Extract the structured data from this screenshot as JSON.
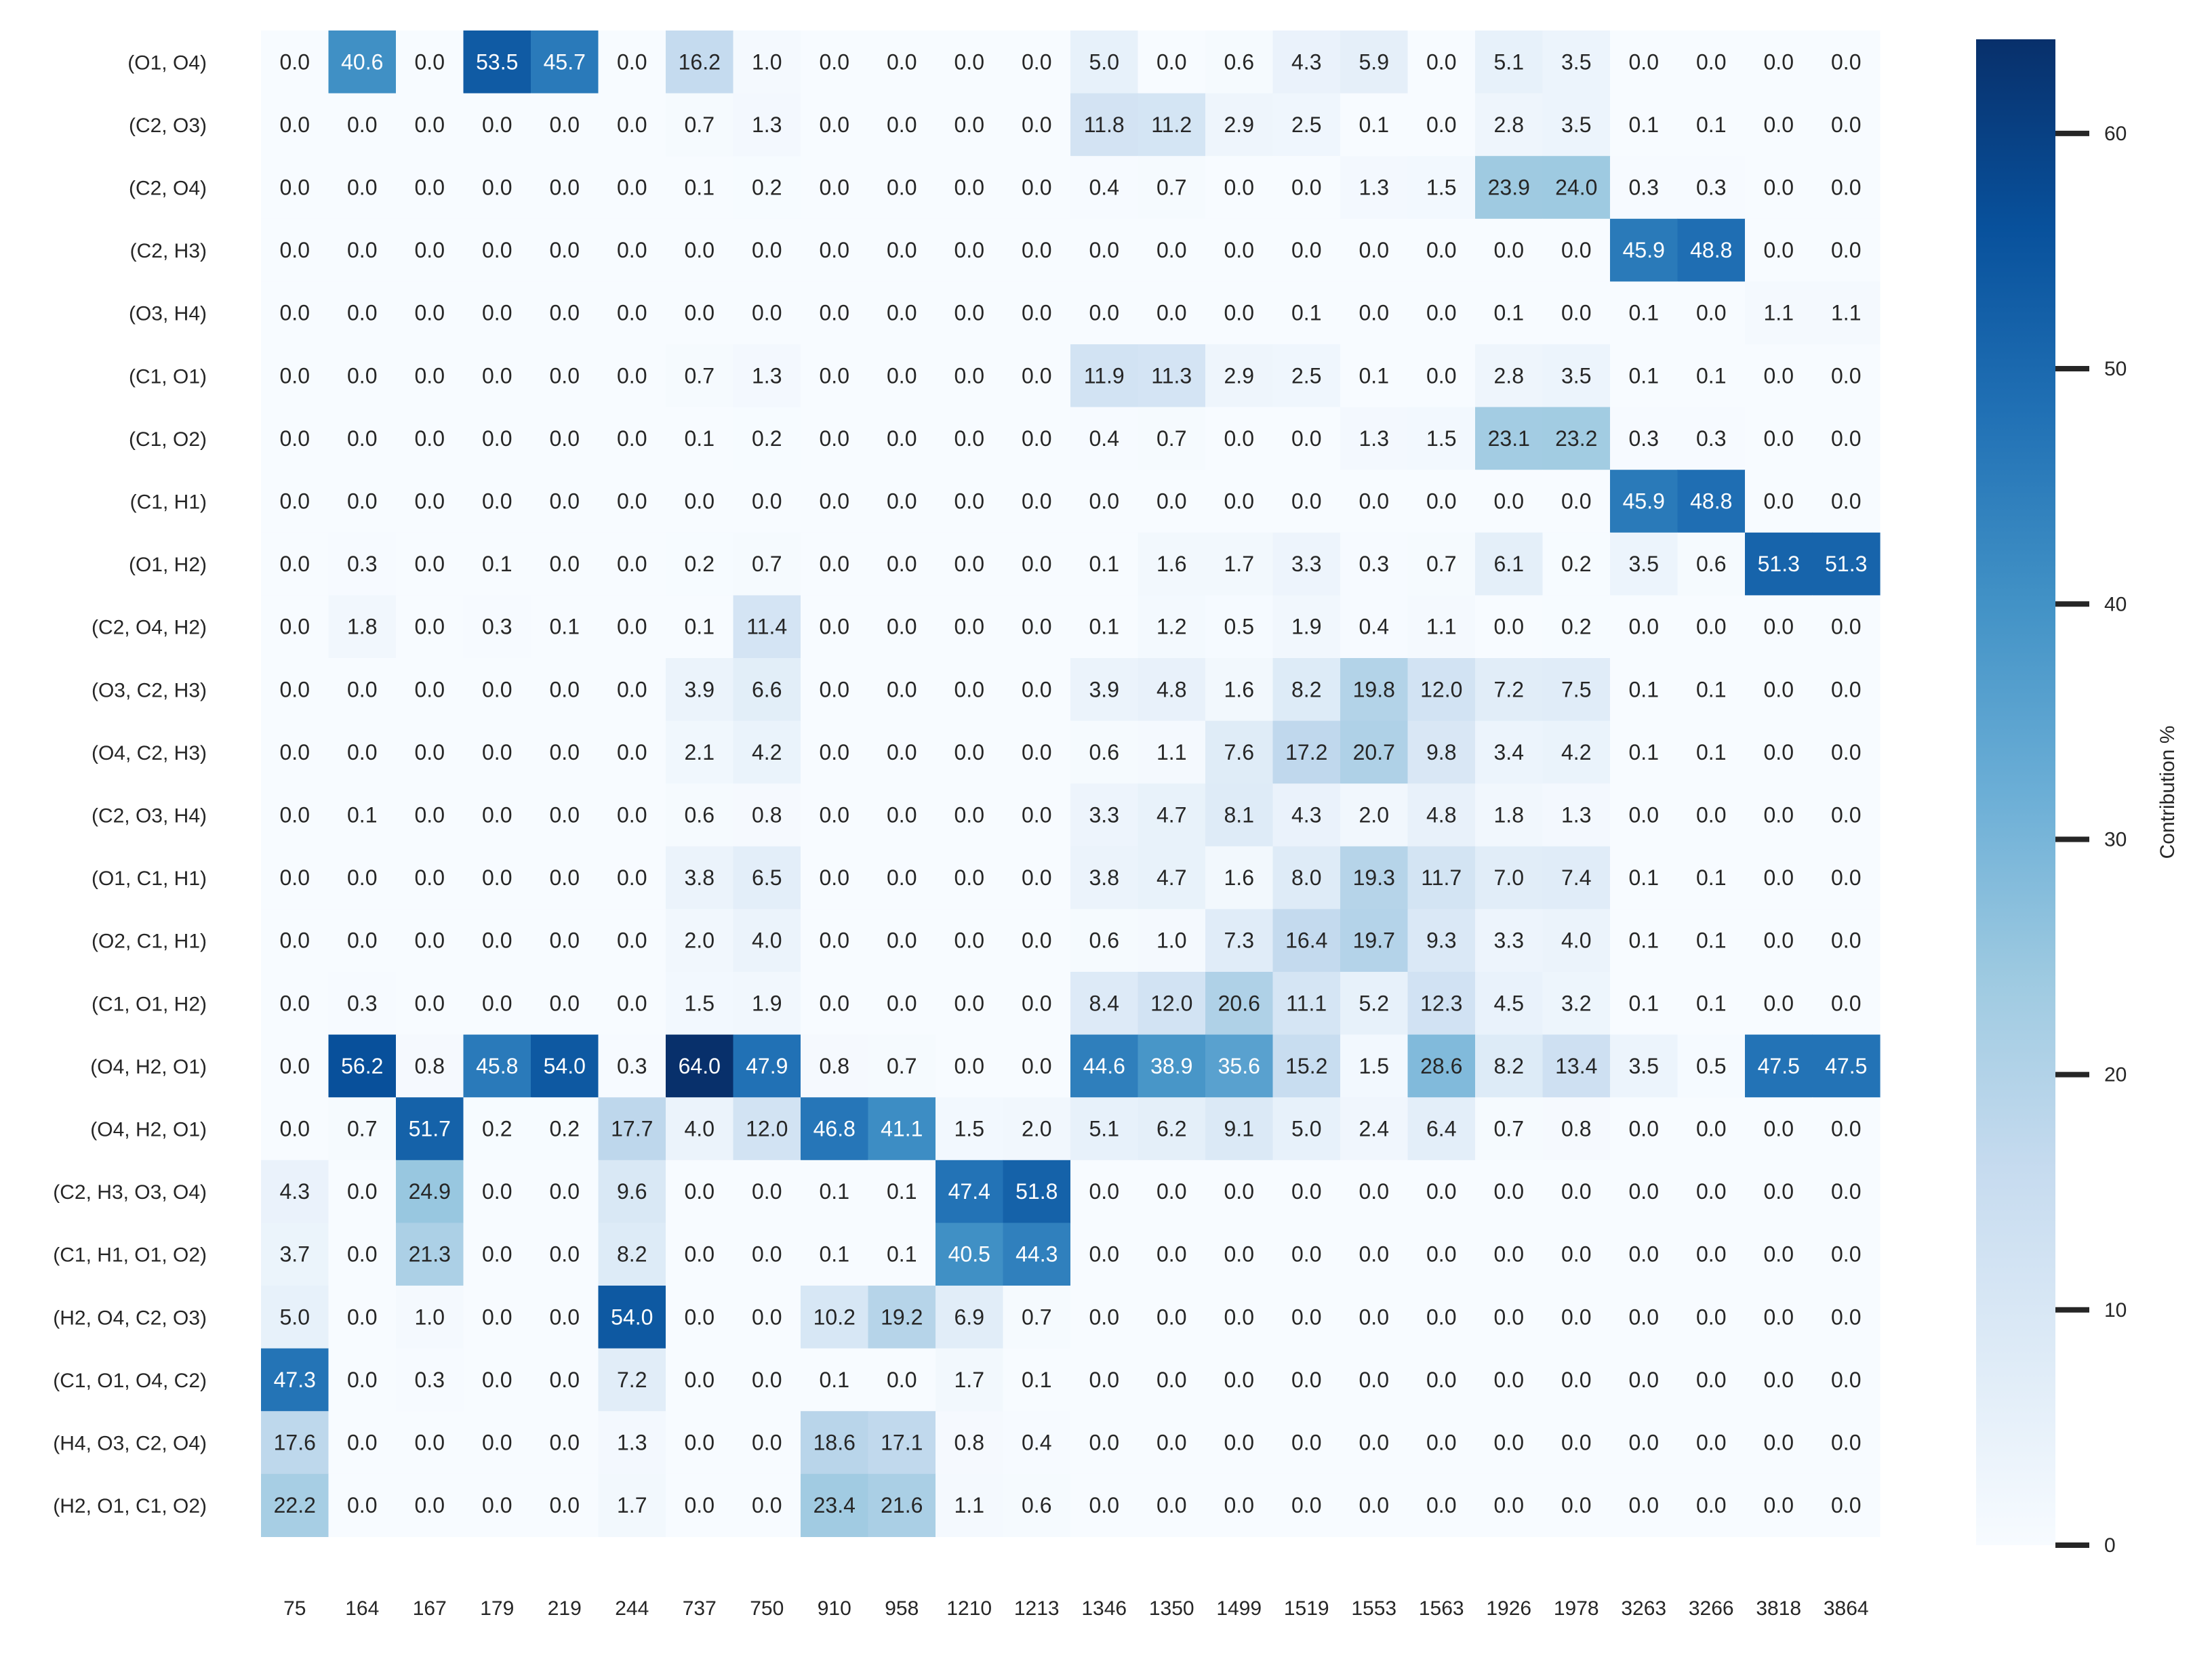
{
  "chart_data": {
    "type": "heatmap",
    "title": "",
    "xlabel": "",
    "ylabel": "",
    "x": [
      "75",
      "164",
      "167",
      "179",
      "219",
      "244",
      "737",
      "750",
      "910",
      "958",
      "1210",
      "1213",
      "1346",
      "1350",
      "1499",
      "1519",
      "1553",
      "1563",
      "1926",
      "1978",
      "3263",
      "3266",
      "3818",
      "3864"
    ],
    "y": [
      "(O1, O4)",
      "(C2, O3)",
      "(C2, O4)",
      "(C2, H3)",
      "(O3, H4)",
      "(C1, O1)",
      "(C1, O2)",
      "(C1, H1)",
      "(O1, H2)",
      "(C2, O4, H2)",
      "(O3, C2, H3)",
      "(O4, C2, H3)",
      "(C2, O3, H4)",
      "(O1, C1, H1)",
      "(O2, C1, H1)",
      "(C1, O1, H2)",
      "(O4, H2, O1)",
      "(O4, H2, O1)",
      "(C2, H3, O3, O4)",
      "(C1, H1, O1, O2)",
      "(H2, O4, C2, O3)",
      "(C1, O1, O4, C2)",
      "(H4, O3, C2, O4)",
      "(H2, O1, C1, O2)"
    ],
    "values": [
      [
        0.0,
        40.6,
        0.0,
        53.5,
        45.7,
        0.0,
        16.2,
        1.0,
        0.0,
        0.0,
        0.0,
        0.0,
        5.0,
        0.0,
        0.6,
        4.3,
        5.9,
        0.0,
        5.1,
        3.5,
        0.0,
        0.0,
        0.0,
        0.0
      ],
      [
        0.0,
        0.0,
        0.0,
        0.0,
        0.0,
        0.0,
        0.7,
        1.3,
        0.0,
        0.0,
        0.0,
        0.0,
        11.8,
        11.2,
        2.9,
        2.5,
        0.1,
        0.0,
        2.8,
        3.5,
        0.1,
        0.1,
        0.0,
        0.0
      ],
      [
        0.0,
        0.0,
        0.0,
        0.0,
        0.0,
        0.0,
        0.1,
        0.2,
        0.0,
        0.0,
        0.0,
        0.0,
        0.4,
        0.7,
        0.0,
        0.0,
        1.3,
        1.5,
        23.9,
        24.0,
        0.3,
        0.3,
        0.0,
        0.0
      ],
      [
        0.0,
        0.0,
        0.0,
        0.0,
        0.0,
        0.0,
        0.0,
        0.0,
        0.0,
        0.0,
        0.0,
        0.0,
        0.0,
        0.0,
        0.0,
        0.0,
        0.0,
        0.0,
        0.0,
        0.0,
        45.9,
        48.8,
        0.0,
        0.0
      ],
      [
        0.0,
        0.0,
        0.0,
        0.0,
        0.0,
        0.0,
        0.0,
        0.0,
        0.0,
        0.0,
        0.0,
        0.0,
        0.0,
        0.0,
        0.0,
        0.1,
        0.0,
        0.0,
        0.1,
        0.0,
        0.1,
        0.0,
        1.1,
        1.1
      ],
      [
        0.0,
        0.0,
        0.0,
        0.0,
        0.0,
        0.0,
        0.7,
        1.3,
        0.0,
        0.0,
        0.0,
        0.0,
        11.9,
        11.3,
        2.9,
        2.5,
        0.1,
        0.0,
        2.8,
        3.5,
        0.1,
        0.1,
        0.0,
        0.0
      ],
      [
        0.0,
        0.0,
        0.0,
        0.0,
        0.0,
        0.0,
        0.1,
        0.2,
        0.0,
        0.0,
        0.0,
        0.0,
        0.4,
        0.7,
        0.0,
        0.0,
        1.3,
        1.5,
        23.1,
        23.2,
        0.3,
        0.3,
        0.0,
        0.0
      ],
      [
        0.0,
        0.0,
        0.0,
        0.0,
        0.0,
        0.0,
        0.0,
        0.0,
        0.0,
        0.0,
        0.0,
        0.0,
        0.0,
        0.0,
        0.0,
        0.0,
        0.0,
        0.0,
        0.0,
        0.0,
        45.9,
        48.8,
        0.0,
        0.0
      ],
      [
        0.0,
        0.3,
        0.0,
        0.1,
        0.0,
        0.0,
        0.2,
        0.7,
        0.0,
        0.0,
        0.0,
        0.0,
        0.1,
        1.6,
        1.7,
        3.3,
        0.3,
        0.7,
        6.1,
        0.2,
        3.5,
        0.6,
        51.3,
        51.3
      ],
      [
        0.0,
        1.8,
        0.0,
        0.3,
        0.1,
        0.0,
        0.1,
        11.4,
        0.0,
        0.0,
        0.0,
        0.0,
        0.1,
        1.2,
        0.5,
        1.9,
        0.4,
        1.1,
        0.0,
        0.2,
        0.0,
        0.0,
        0.0,
        0.0
      ],
      [
        0.0,
        0.0,
        0.0,
        0.0,
        0.0,
        0.0,
        3.9,
        6.6,
        0.0,
        0.0,
        0.0,
        0.0,
        3.9,
        4.8,
        1.6,
        8.2,
        19.8,
        12.0,
        7.2,
        7.5,
        0.1,
        0.1,
        0.0,
        0.0
      ],
      [
        0.0,
        0.0,
        0.0,
        0.0,
        0.0,
        0.0,
        2.1,
        4.2,
        0.0,
        0.0,
        0.0,
        0.0,
        0.6,
        1.1,
        7.6,
        17.2,
        20.7,
        9.8,
        3.4,
        4.2,
        0.1,
        0.1,
        0.0,
        0.0
      ],
      [
        0.0,
        0.1,
        0.0,
        0.0,
        0.0,
        0.0,
        0.6,
        0.8,
        0.0,
        0.0,
        0.0,
        0.0,
        3.3,
        4.7,
        8.1,
        4.3,
        2.0,
        4.8,
        1.8,
        1.3,
        0.0,
        0.0,
        0.0,
        0.0
      ],
      [
        0.0,
        0.0,
        0.0,
        0.0,
        0.0,
        0.0,
        3.8,
        6.5,
        0.0,
        0.0,
        0.0,
        0.0,
        3.8,
        4.7,
        1.6,
        8.0,
        19.3,
        11.7,
        7.0,
        7.4,
        0.1,
        0.1,
        0.0,
        0.0
      ],
      [
        0.0,
        0.0,
        0.0,
        0.0,
        0.0,
        0.0,
        2.0,
        4.0,
        0.0,
        0.0,
        0.0,
        0.0,
        0.6,
        1.0,
        7.3,
        16.4,
        19.7,
        9.3,
        3.3,
        4.0,
        0.1,
        0.1,
        0.0,
        0.0
      ],
      [
        0.0,
        0.3,
        0.0,
        0.0,
        0.0,
        0.0,
        1.5,
        1.9,
        0.0,
        0.0,
        0.0,
        0.0,
        8.4,
        12.0,
        20.6,
        11.1,
        5.2,
        12.3,
        4.5,
        3.2,
        0.1,
        0.1,
        0.0,
        0.0
      ],
      [
        0.0,
        56.2,
        0.8,
        45.8,
        54.0,
        0.3,
        64.0,
        47.9,
        0.8,
        0.7,
        0.0,
        0.0,
        44.6,
        38.9,
        35.6,
        15.2,
        1.5,
        28.6,
        8.2,
        13.4,
        3.5,
        0.5,
        47.5,
        47.5
      ],
      [
        0.0,
        0.7,
        51.7,
        0.2,
        0.2,
        17.7,
        4.0,
        12.0,
        46.8,
        41.1,
        1.5,
        2.0,
        5.1,
        6.2,
        9.1,
        5.0,
        2.4,
        6.4,
        0.7,
        0.8,
        0.0,
        0.0,
        0.0,
        0.0
      ],
      [
        4.3,
        0.0,
        24.9,
        0.0,
        0.0,
        9.6,
        0.0,
        0.0,
        0.1,
        0.1,
        47.4,
        51.8,
        0.0,
        0.0,
        0.0,
        0.0,
        0.0,
        0.0,
        0.0,
        0.0,
        0.0,
        0.0,
        0.0,
        0.0
      ],
      [
        3.7,
        0.0,
        21.3,
        0.0,
        0.0,
        8.2,
        0.0,
        0.0,
        0.1,
        0.1,
        40.5,
        44.3,
        0.0,
        0.0,
        0.0,
        0.0,
        0.0,
        0.0,
        0.0,
        0.0,
        0.0,
        0.0,
        0.0,
        0.0
      ],
      [
        5.0,
        0.0,
        1.0,
        0.0,
        0.0,
        54.0,
        0.0,
        0.0,
        10.2,
        19.2,
        6.9,
        0.7,
        0.0,
        0.0,
        0.0,
        0.0,
        0.0,
        0.0,
        0.0,
        0.0,
        0.0,
        0.0,
        0.0,
        0.0
      ],
      [
        47.3,
        0.0,
        0.3,
        0.0,
        0.0,
        7.2,
        0.0,
        0.0,
        0.1,
        0.0,
        1.7,
        0.1,
        0.0,
        0.0,
        0.0,
        0.0,
        0.0,
        0.0,
        0.0,
        0.0,
        0.0,
        0.0,
        0.0,
        0.0
      ],
      [
        17.6,
        0.0,
        0.0,
        0.0,
        0.0,
        1.3,
        0.0,
        0.0,
        18.6,
        17.1,
        0.8,
        0.4,
        0.0,
        0.0,
        0.0,
        0.0,
        0.0,
        0.0,
        0.0,
        0.0,
        0.0,
        0.0,
        0.0,
        0.0
      ],
      [
        22.2,
        0.0,
        0.0,
        0.0,
        0.0,
        1.7,
        0.0,
        0.0,
        23.4,
        21.6,
        1.1,
        0.6,
        0.0,
        0.0,
        0.0,
        0.0,
        0.0,
        0.0,
        0.0,
        0.0,
        0.0,
        0.0,
        0.0,
        0.0
      ]
    ],
    "colorbar": {
      "label": "Contribution %",
      "ticks": [
        0,
        10,
        20,
        30,
        40,
        50,
        60
      ],
      "range": [
        0,
        64
      ],
      "colormap": "Blues",
      "low_color": "#f7fbff",
      "high_color": "#08306b"
    },
    "annotations": "cell values shown with one decimal"
  }
}
